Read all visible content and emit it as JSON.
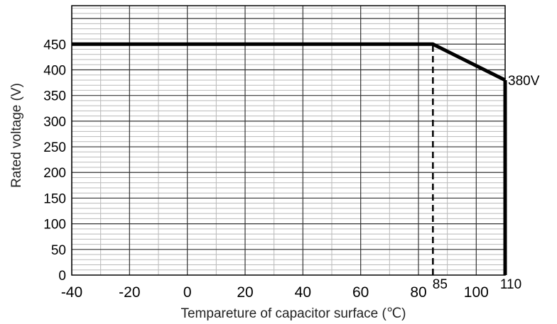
{
  "chart_data": {
    "type": "line",
    "title": "",
    "xlabel": "Tempareture of capacitor surface (℃)",
    "ylabel": "Rated voltage (V)",
    "xlim": [
      -40,
      110
    ],
    "ylim": [
      0,
      450
    ],
    "x_ticks": [
      -40,
      -20,
      0,
      20,
      40,
      60,
      80,
      100
    ],
    "x_tick_labels": [
      "-40",
      "-20",
      "0",
      "20",
      "40",
      "60",
      "80",
      "100"
    ],
    "y_ticks": [
      0,
      50,
      100,
      150,
      200,
      250,
      300,
      350,
      400,
      450
    ],
    "y_tick_labels": [
      "0",
      "50",
      "100",
      "150",
      "200",
      "250",
      "300",
      "350",
      "400",
      "450"
    ],
    "grid": true,
    "series": [
      {
        "x": [
          -40,
          85,
          110
        ],
        "y": [
          450,
          450,
          380
        ]
      }
    ],
    "reference_lines": [
      {
        "x": 85,
        "y_from": 0,
        "y_to": 450,
        "style": "dashed"
      },
      {
        "x": 110,
        "y_from": 0,
        "y_to": 380,
        "style": "solid"
      }
    ],
    "annotations": [
      {
        "text": "380V",
        "x": 110,
        "y": 380
      },
      {
        "text": "85",
        "x": 85,
        "y": 0
      },
      {
        "text": "110",
        "x": 110,
        "y": 0
      }
    ]
  }
}
